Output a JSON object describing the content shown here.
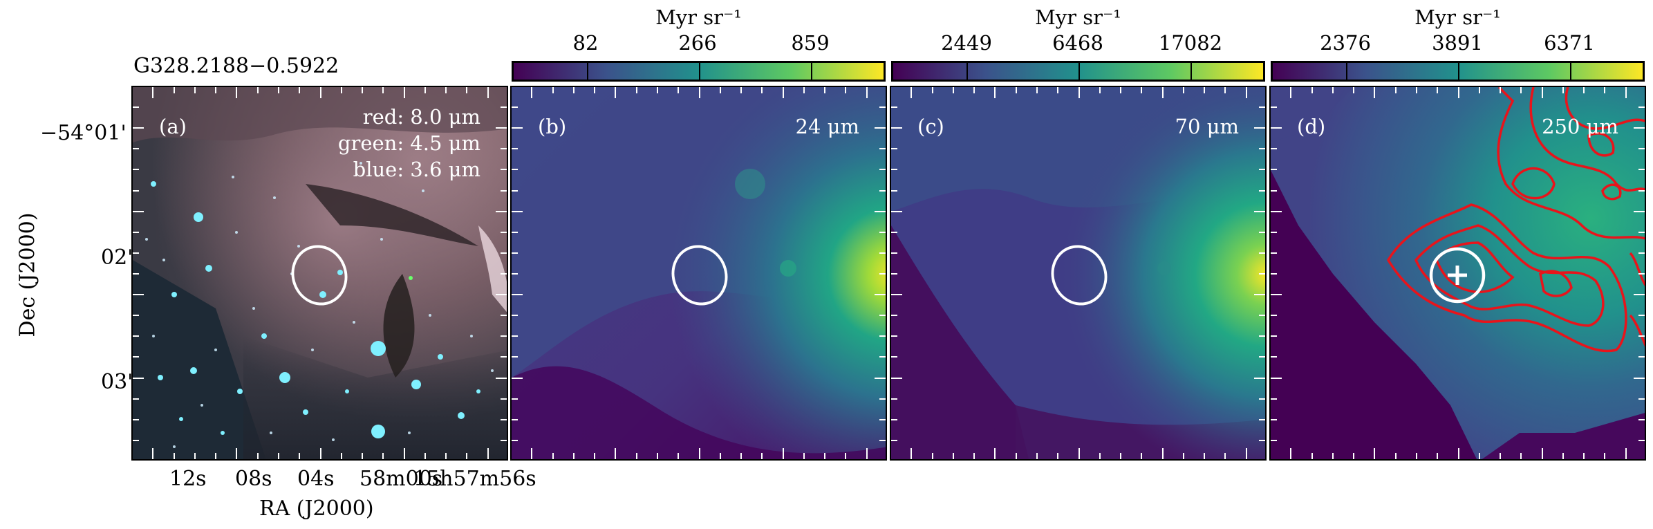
{
  "source_name": "G328.2188−0.5922",
  "axes": {
    "ylabel": "Dec (J2000)",
    "xlabel": "RA (J2000)",
    "yticks": [
      "−54°01'",
      "02'",
      "03'"
    ],
    "xticks": [
      "12s",
      "08s",
      "04s",
      "58m00s",
      "15h57m56s"
    ]
  },
  "panels": [
    {
      "id": "a",
      "label": "(a)",
      "channels": [
        "red: 8.0 μm",
        "green: 4.5 μm",
        "blue: 3.6 μm"
      ]
    },
    {
      "id": "b",
      "label": "(b)",
      "wavelength": "24 μm",
      "colorbar": {
        "unit": "Myr sr⁻¹",
        "ticks": [
          "82",
          "266",
          "859"
        ]
      }
    },
    {
      "id": "c",
      "label": "(c)",
      "wavelength": "70 μm",
      "colorbar": {
        "unit": "Myr sr⁻¹",
        "ticks": [
          "2449",
          "6468",
          "17082"
        ]
      }
    },
    {
      "id": "d",
      "label": "(d)",
      "wavelength": "250 μm",
      "colorbar": {
        "unit": "Myr sr⁻¹",
        "ticks": [
          "2376",
          "3891",
          "6371"
        ]
      }
    }
  ],
  "colors": {
    "colormap": [
      "#440154",
      "#3b528b",
      "#21918c",
      "#5ec962",
      "#fde725"
    ],
    "beam_ellipse": "#ffffff",
    "contours": "#e8141b"
  }
}
